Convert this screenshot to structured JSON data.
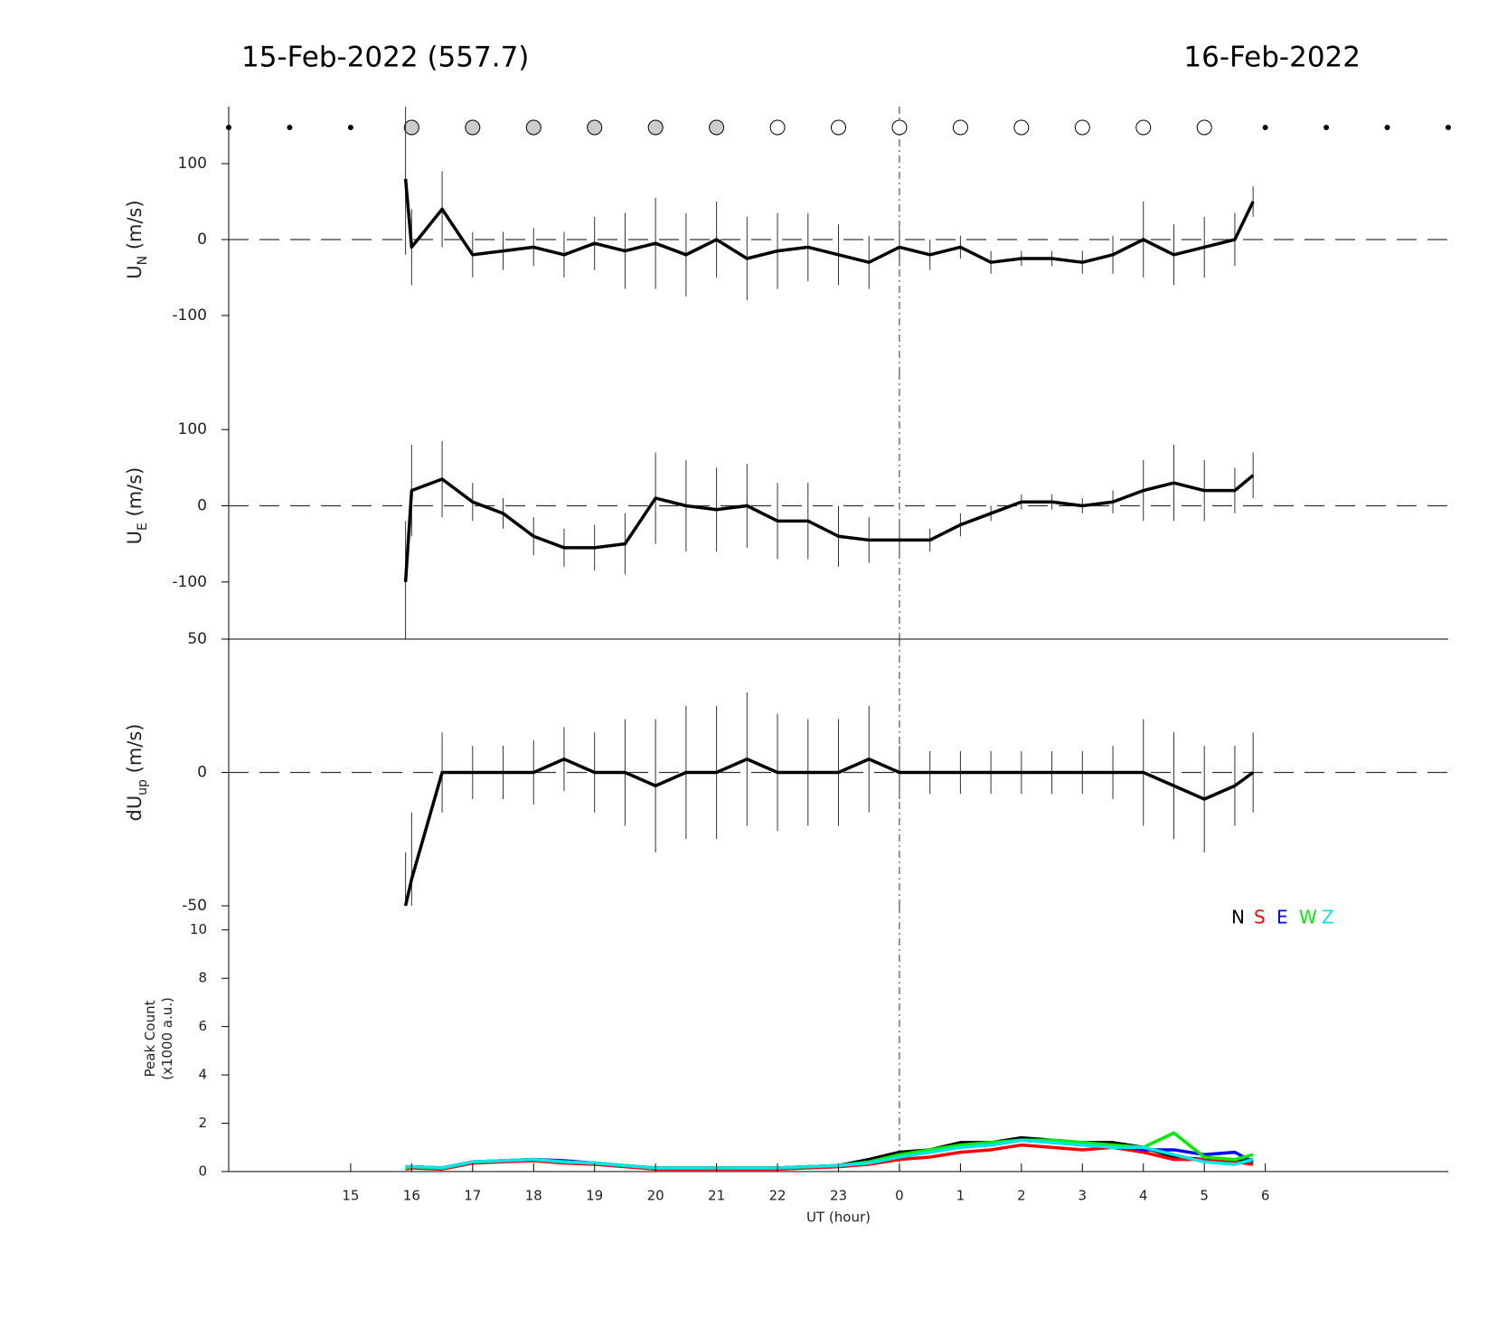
{
  "chart_data": [
    {
      "type": "errorline",
      "title_left": "15-Feb-2022 (557.7)",
      "title_right": "16-Feb-2022",
      "ylabel": {
        "main": "U",
        "sub": "N",
        "unit": " (m/s)"
      },
      "xlim": [
        13,
        33
      ],
      "ylim": [
        -175,
        175
      ],
      "yticks": [
        -100,
        0,
        100
      ],
      "zero_line": true,
      "vline": 24,
      "color": "#000000",
      "scan_markers": {
        "x": [
          13,
          14,
          15,
          16,
          17,
          18,
          19,
          20,
          21,
          22,
          23,
          24,
          25,
          26,
          27,
          28,
          29,
          30,
          31,
          32,
          33
        ],
        "state": [
          "dot",
          "dot",
          "dot",
          "filled",
          "filled",
          "filled",
          "filled",
          "filled",
          "filled",
          "open",
          "open",
          "open",
          "open",
          "open",
          "open",
          "open",
          "open",
          "dot",
          "dot",
          "dot",
          "dot"
        ]
      },
      "marker_colors": {
        "dot": "#000000",
        "filled": "#cccccc",
        "open": "#ffffff"
      },
      "x": [
        15.9,
        16,
        16.5,
        17,
        17.5,
        18,
        18.5,
        19,
        19.5,
        20,
        20.5,
        21,
        21.5,
        22,
        22.5,
        23,
        23.5,
        24,
        24.5,
        25,
        25.5,
        26,
        26.5,
        27,
        27.5,
        28,
        28.5,
        29,
        29.5,
        29.8
      ],
      "values": [
        80,
        -10,
        40,
        -20,
        -15,
        -10,
        -20,
        -5,
        -15,
        -5,
        -20,
        0,
        -25,
        -15,
        -10,
        -20,
        -30,
        -10,
        -20,
        -10,
        -30,
        -25,
        -25,
        -30,
        -20,
        0,
        -20,
        -10,
        0,
        50
      ],
      "errors": [
        100,
        50,
        50,
        30,
        25,
        25,
        30,
        35,
        50,
        60,
        55,
        50,
        55,
        50,
        45,
        40,
        35,
        25,
        20,
        15,
        15,
        10,
        10,
        15,
        25,
        50,
        40,
        40,
        35,
        20
      ]
    },
    {
      "type": "errorline",
      "ylabel": {
        "main": "U",
        "sub": "E",
        "unit": " (m/s)"
      },
      "xlim": [
        13,
        33
      ],
      "ylim": [
        -175,
        175
      ],
      "yticks": [
        -100,
        0,
        100
      ],
      "zero_line": true,
      "vline": 24,
      "color": "#000000",
      "x": [
        15.9,
        16,
        16.5,
        17,
        17.5,
        18,
        18.5,
        19,
        19.5,
        20,
        20.5,
        21,
        21.5,
        22,
        22.5,
        23,
        23.5,
        24,
        24.5,
        25,
        25.5,
        26,
        26.5,
        27,
        27.5,
        28,
        28.5,
        29,
        29.5,
        29.8
      ],
      "values": [
        -100,
        20,
        35,
        5,
        -10,
        -40,
        -55,
        -55,
        -50,
        10,
        0,
        -5,
        0,
        -20,
        -20,
        -40,
        -45,
        -45,
        -45,
        -25,
        -10,
        5,
        5,
        0,
        5,
        20,
        30,
        20,
        20,
        40
      ],
      "errors": [
        80,
        60,
        50,
        25,
        20,
        25,
        25,
        30,
        40,
        60,
        60,
        55,
        55,
        50,
        50,
        40,
        30,
        20,
        15,
        15,
        10,
        10,
        10,
        10,
        15,
        40,
        50,
        40,
        30,
        30
      ]
    },
    {
      "type": "errorline",
      "ylabel": {
        "main": "dU",
        "sub": "up",
        "unit": " (m/s)"
      },
      "xlim": [
        13,
        33
      ],
      "ylim": [
        -50,
        50
      ],
      "yticks": [
        -50,
        0,
        50
      ],
      "zero_line": true,
      "vline": 24,
      "color": "#000000",
      "x": [
        15.9,
        16,
        16.5,
        17,
        17.5,
        18,
        18.5,
        19,
        19.5,
        20,
        20.5,
        21,
        21.5,
        22,
        22.5,
        23,
        23.5,
        24,
        24.5,
        25,
        25.5,
        26,
        26.5,
        27,
        27.5,
        28,
        28.5,
        29,
        29.5,
        29.8
      ],
      "values": [
        -50,
        -40,
        0,
        0,
        0,
        0,
        5,
        0,
        0,
        -5,
        0,
        0,
        5,
        0,
        0,
        0,
        5,
        0,
        0,
        0,
        0,
        0,
        0,
        0,
        0,
        0,
        -5,
        -10,
        -5,
        0
      ],
      "errors": [
        20,
        25,
        15,
        10,
        10,
        12,
        12,
        15,
        20,
        25,
        25,
        25,
        25,
        22,
        20,
        20,
        20,
        10,
        8,
        8,
        8,
        8,
        8,
        8,
        10,
        20,
        20,
        20,
        15,
        15
      ]
    },
    {
      "type": "line",
      "ylabel": {
        "line1": "Peak Count",
        "line2": "(x1000 a.u.)"
      },
      "xlabel": "UT (hour)",
      "xlim": [
        13,
        33
      ],
      "ylim": [
        0,
        11
      ],
      "yticks": [
        0,
        2,
        4,
        6,
        8,
        10
      ],
      "vline": 24,
      "legend": "top-right",
      "xticks": [
        15,
        16,
        17,
        18,
        19,
        20,
        21,
        22,
        23,
        {
          "value": 24,
          "label": "0"
        },
        {
          "value": 25,
          "label": "1"
        },
        {
          "value": 26,
          "label": "2"
        },
        {
          "value": 27,
          "label": "3"
        },
        {
          "value": 28,
          "label": "4"
        },
        {
          "value": 29,
          "label": "5"
        },
        {
          "value": 30,
          "label": "6"
        }
      ],
      "x": [
        15.9,
        16,
        16.5,
        17,
        17.5,
        18,
        18.5,
        19,
        19.5,
        20,
        20.5,
        21,
        21.5,
        22,
        22.5,
        23,
        23.5,
        24,
        24.5,
        25,
        25.5,
        26,
        26.5,
        27,
        27.5,
        28,
        28.5,
        29,
        29.5,
        29.8
      ],
      "series": [
        {
          "name": "N",
          "color": "#000000",
          "values": [
            0.2,
            0.2,
            0.15,
            0.4,
            0.45,
            0.5,
            0.4,
            0.35,
            0.25,
            0.15,
            0.15,
            0.15,
            0.15,
            0.15,
            0.2,
            0.25,
            0.5,
            0.8,
            0.9,
            1.2,
            1.2,
            1.4,
            1.3,
            1.2,
            1.2,
            1.0,
            0.6,
            0.5,
            0.4,
            0.5
          ]
        },
        {
          "name": "S",
          "color": "#ff0000",
          "values": [
            0.1,
            0.15,
            0.1,
            0.35,
            0.4,
            0.45,
            0.35,
            0.3,
            0.2,
            0.1,
            0.1,
            0.1,
            0.1,
            0.1,
            0.15,
            0.2,
            0.3,
            0.5,
            0.6,
            0.8,
            0.9,
            1.1,
            1.0,
            0.9,
            1.0,
            0.8,
            0.5,
            0.5,
            0.4,
            0.3
          ]
        },
        {
          "name": "E",
          "color": "#0000ff",
          "values": [
            0.15,
            0.2,
            0.15,
            0.4,
            0.45,
            0.5,
            0.45,
            0.35,
            0.25,
            0.15,
            0.15,
            0.15,
            0.15,
            0.15,
            0.2,
            0.25,
            0.4,
            0.7,
            0.8,
            1.1,
            1.1,
            1.3,
            1.2,
            1.1,
            1.1,
            0.9,
            0.9,
            0.7,
            0.8,
            0.4
          ]
        },
        {
          "name": "W",
          "color": "#00ee00",
          "values": [
            0.15,
            0.2,
            0.15,
            0.4,
            0.45,
            0.5,
            0.4,
            0.35,
            0.25,
            0.15,
            0.15,
            0.15,
            0.15,
            0.15,
            0.2,
            0.25,
            0.4,
            0.7,
            0.9,
            1.1,
            1.2,
            1.3,
            1.3,
            1.2,
            1.1,
            1.0,
            1.6,
            0.6,
            0.5,
            0.7
          ]
        },
        {
          "name": "Z",
          "color": "#00e5e5",
          "values": [
            0.2,
            0.2,
            0.15,
            0.4,
            0.45,
            0.5,
            0.4,
            0.35,
            0.25,
            0.15,
            0.15,
            0.15,
            0.15,
            0.15,
            0.2,
            0.25,
            0.35,
            0.6,
            0.8,
            1.0,
            1.1,
            1.3,
            1.2,
            1.1,
            1.0,
            1.0,
            0.7,
            0.4,
            0.3,
            0.5
          ]
        }
      ]
    }
  ]
}
